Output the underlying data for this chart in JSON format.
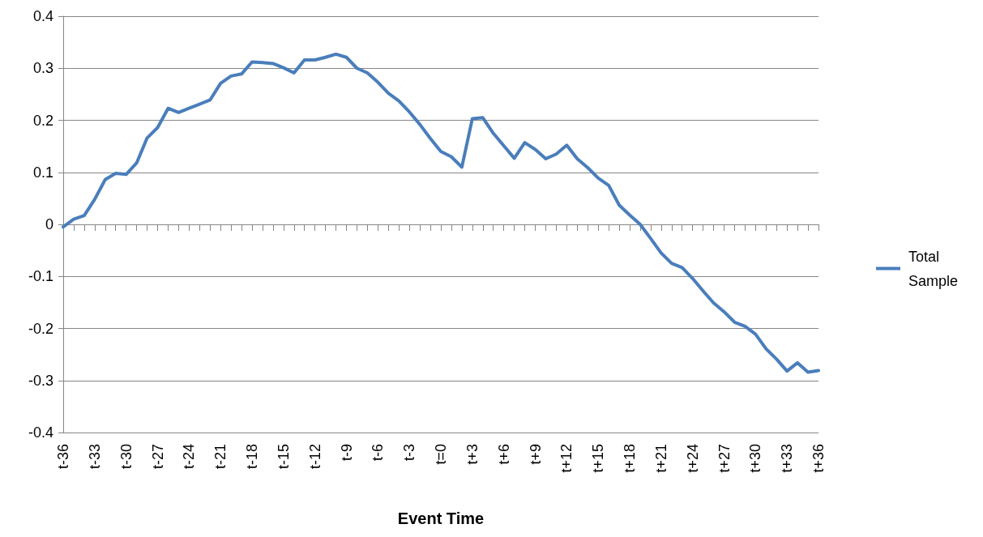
{
  "chart_data": {
    "type": "line",
    "xlabel": "Event Time",
    "categories": [
      "t-36",
      null,
      null,
      "t-33",
      null,
      null,
      "t-30",
      null,
      null,
      "t-27",
      null,
      null,
      "t-24",
      null,
      null,
      "t-21",
      null,
      null,
      "t-18",
      null,
      null,
      "t-15",
      null,
      null,
      "t-12",
      null,
      null,
      "t-9",
      null,
      null,
      "t-6",
      null,
      null,
      "t-3",
      null,
      null,
      "t=0",
      null,
      null,
      "t+3",
      null,
      null,
      "t+6",
      null,
      null,
      "t+9",
      null,
      null,
      "t+12",
      null,
      null,
      "t+15",
      null,
      null,
      "t+18",
      null,
      null,
      "t+21",
      null,
      null,
      "t+24",
      null,
      null,
      "t+27",
      null,
      null,
      "t+30",
      null,
      null,
      "t+33",
      null,
      null,
      "t+36"
    ],
    "series": [
      {
        "name": "Total Sample",
        "color": "#4a7ebb",
        "values": [
          -0.005,
          0.01,
          0.017,
          0.048,
          0.086,
          0.098,
          0.096,
          0.118,
          0.166,
          0.186,
          0.223,
          0.215,
          0.223,
          0.231,
          0.239,
          0.271,
          0.285,
          0.289,
          0.312,
          0.311,
          0.309,
          0.301,
          0.291,
          0.316,
          0.316,
          0.321,
          0.327,
          0.321,
          0.3,
          0.291,
          0.273,
          0.252,
          0.237,
          0.216,
          0.192,
          0.165,
          0.14,
          0.13,
          0.11,
          0.203,
          0.205,
          0.175,
          0.151,
          0.127,
          0.157,
          0.144,
          0.126,
          0.135,
          0.152,
          0.126,
          0.109,
          0.089,
          0.075,
          0.037,
          0.018,
          0.0,
          -0.027,
          -0.055,
          -0.075,
          -0.083,
          -0.104,
          -0.128,
          -0.151,
          -0.168,
          -0.188,
          -0.196,
          -0.211,
          -0.239,
          -0.259,
          -0.282,
          -0.266,
          -0.284,
          -0.281
        ]
      }
    ],
    "ylim": [
      -0.4,
      0.4
    ],
    "yticks": [
      -0.4,
      -0.3,
      -0.2,
      -0.1,
      0,
      0.1,
      0.2,
      0.3,
      0.4
    ],
    "grid": "y",
    "legend": "right",
    "marker": "none",
    "line_style": "solid"
  }
}
